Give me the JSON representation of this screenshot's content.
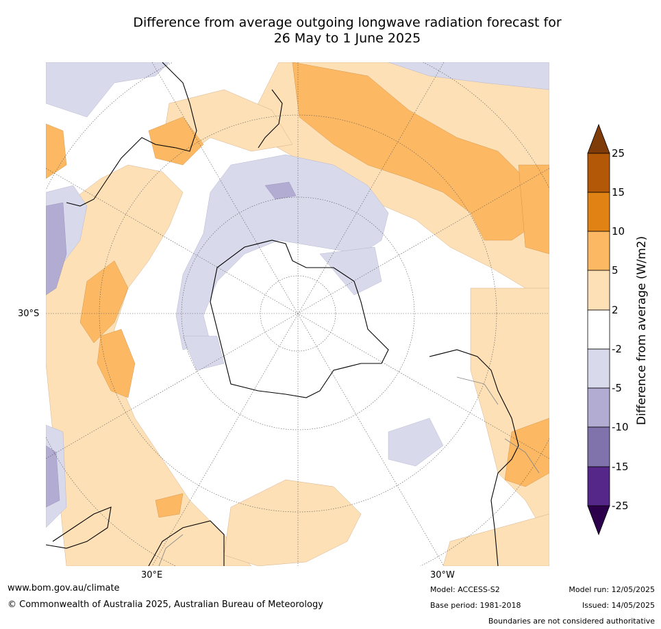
{
  "title_line1": "Difference from average outgoing longwave radiation forecast for",
  "title_line2": "26 May to 1 June 2025",
  "map": {
    "lat_label": "30°S",
    "lon_labels": [
      "30°E",
      "30°W"
    ]
  },
  "colorbar": {
    "label": "Difference from average (W/m2)",
    "ticks": [
      "25",
      "15",
      "10",
      "5",
      "2",
      "-2",
      "-5",
      "-10",
      "-15",
      "-25"
    ],
    "colors": {
      "over": "#7f3b08",
      "15 to 25": "#b35806",
      "10 to 15": "#e08214",
      "5 to 10": "#fdb863",
      "2 to 5": "#fee0b6",
      "-2 to 2": "#ffffff",
      "-5 to -2": "#d8daeb",
      "-10 to -5": "#b2abd2",
      "-15 to -10": "#8073ac",
      "-25 to -15": "#542788",
      "under": "#2d004b"
    }
  },
  "footer": {
    "url": "www.bom.gov.au/climate",
    "copyright": "© Commonwealth of Australia 2025, Australian Bureau of Meteorology",
    "model": "Model: ACCESS-S2",
    "base_period": "Base period: 1981-2018",
    "model_run": "Model run: 12/05/2025",
    "issued": "Issued: 14/05/2025",
    "disclaimer": "Boundaries are not considered authoritative"
  }
}
